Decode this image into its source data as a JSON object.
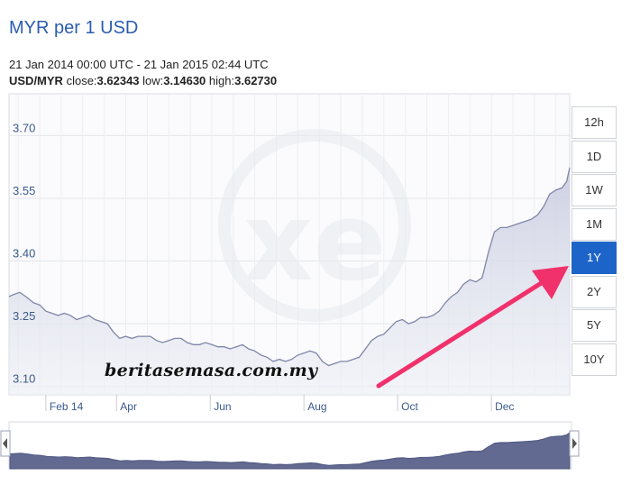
{
  "header": {
    "title": "MYR per 1 USD",
    "date_range": "21 Jan 2014 00:00 UTC - 21 Jan 2015 02:44 UTC",
    "pair": "USD/MYR",
    "close_label": "close:",
    "close_value": "3.62343",
    "low_label": "low:",
    "low_value": "3.14630",
    "high_label": "high:",
    "high_value": "3.62730"
  },
  "range_buttons": [
    {
      "label": "12h",
      "active": false
    },
    {
      "label": "1D",
      "active": false
    },
    {
      "label": "1W",
      "active": false
    },
    {
      "label": "1M",
      "active": false
    },
    {
      "label": "1Y",
      "active": true
    },
    {
      "label": "2Y",
      "active": false
    },
    {
      "label": "5Y",
      "active": false
    },
    {
      "label": "10Y",
      "active": false
    }
  ],
  "watermark_text": "beritasemasa.com.my",
  "colors": {
    "accent": "#1d64c9",
    "title": "#2a5db0",
    "line": "#7f86a8",
    "area": "#e3e5ef",
    "navigator": "#626a91",
    "arrow": "#f0316b"
  },
  "chart_data": {
    "type": "area",
    "ylim": [
      3.08,
      3.8
    ],
    "yticks": [
      3.1,
      3.25,
      3.4,
      3.55,
      3.7
    ],
    "ytick_labels": [
      "3.10",
      "3.25",
      "3.40",
      "3.55",
      "3.70"
    ],
    "xticks": [
      "Feb 14",
      "Apr",
      "Jun",
      "Aug",
      "Oct",
      "Dec"
    ],
    "grid": true,
    "annotation": "arrow pointing to 1Y button",
    "series": [
      {
        "x": [
          "2014-01-21",
          "2014-01-24",
          "2014-01-28",
          "2014-02-01",
          "2014-02-06",
          "2014-02-10",
          "2014-02-14",
          "2014-02-18",
          "2014-02-22",
          "2014-02-26",
          "2014-03-02",
          "2014-03-06",
          "2014-03-10",
          "2014-03-14",
          "2014-03-18",
          "2014-03-22",
          "2014-03-26",
          "2014-03-30",
          "2014-04-03",
          "2014-04-07",
          "2014-04-11",
          "2014-04-15",
          "2014-04-19",
          "2014-04-23",
          "2014-04-27",
          "2014-05-01",
          "2014-05-05",
          "2014-05-09",
          "2014-05-13",
          "2014-05-17",
          "2014-05-21",
          "2014-05-25",
          "2014-05-29",
          "2014-06-02",
          "2014-06-06",
          "2014-06-10",
          "2014-06-14",
          "2014-06-18",
          "2014-06-22",
          "2014-06-26",
          "2014-06-30",
          "2014-07-04",
          "2014-07-08",
          "2014-07-12",
          "2014-07-16",
          "2014-07-20",
          "2014-07-24",
          "2014-07-28",
          "2014-08-01",
          "2014-08-05",
          "2014-08-09",
          "2014-08-13",
          "2014-08-17",
          "2014-08-21",
          "2014-08-25",
          "2014-08-29",
          "2014-09-02",
          "2014-09-06",
          "2014-09-10",
          "2014-09-14",
          "2014-09-18",
          "2014-09-22",
          "2014-09-26",
          "2014-09-30",
          "2014-10-04",
          "2014-10-08",
          "2014-10-12",
          "2014-10-16",
          "2014-10-20",
          "2014-10-24",
          "2014-10-28",
          "2014-11-01",
          "2014-11-05",
          "2014-11-09",
          "2014-11-13",
          "2014-11-17",
          "2014-11-21",
          "2014-11-25",
          "2014-11-29",
          "2014-12-03",
          "2014-12-07",
          "2014-12-11",
          "2014-12-15",
          "2014-12-19",
          "2014-12-23",
          "2014-12-27",
          "2014-12-31",
          "2015-01-04",
          "2015-01-08",
          "2015-01-12",
          "2015-01-16",
          "2015-01-19",
          "2015-01-21"
        ],
        "y": [
          3.315,
          3.32,
          3.325,
          3.315,
          3.3,
          3.295,
          3.28,
          3.275,
          3.27,
          3.275,
          3.27,
          3.26,
          3.265,
          3.27,
          3.26,
          3.255,
          3.25,
          3.23,
          3.215,
          3.22,
          3.215,
          3.22,
          3.22,
          3.22,
          3.21,
          3.205,
          3.21,
          3.215,
          3.215,
          3.205,
          3.2,
          3.2,
          3.205,
          3.2,
          3.195,
          3.195,
          3.19,
          3.195,
          3.2,
          3.19,
          3.185,
          3.175,
          3.17,
          3.16,
          3.165,
          3.16,
          3.165,
          3.175,
          3.18,
          3.185,
          3.18,
          3.16,
          3.15,
          3.155,
          3.16,
          3.16,
          3.165,
          3.17,
          3.19,
          3.21,
          3.22,
          3.225,
          3.24,
          3.255,
          3.26,
          3.25,
          3.255,
          3.265,
          3.265,
          3.27,
          3.28,
          3.3,
          3.315,
          3.325,
          3.345,
          3.355,
          3.35,
          3.36,
          3.42,
          3.47,
          3.48,
          3.48,
          3.485,
          3.49,
          3.495,
          3.5,
          3.51,
          3.53,
          3.56,
          3.57,
          3.575,
          3.59,
          3.6234
        ]
      }
    ]
  }
}
